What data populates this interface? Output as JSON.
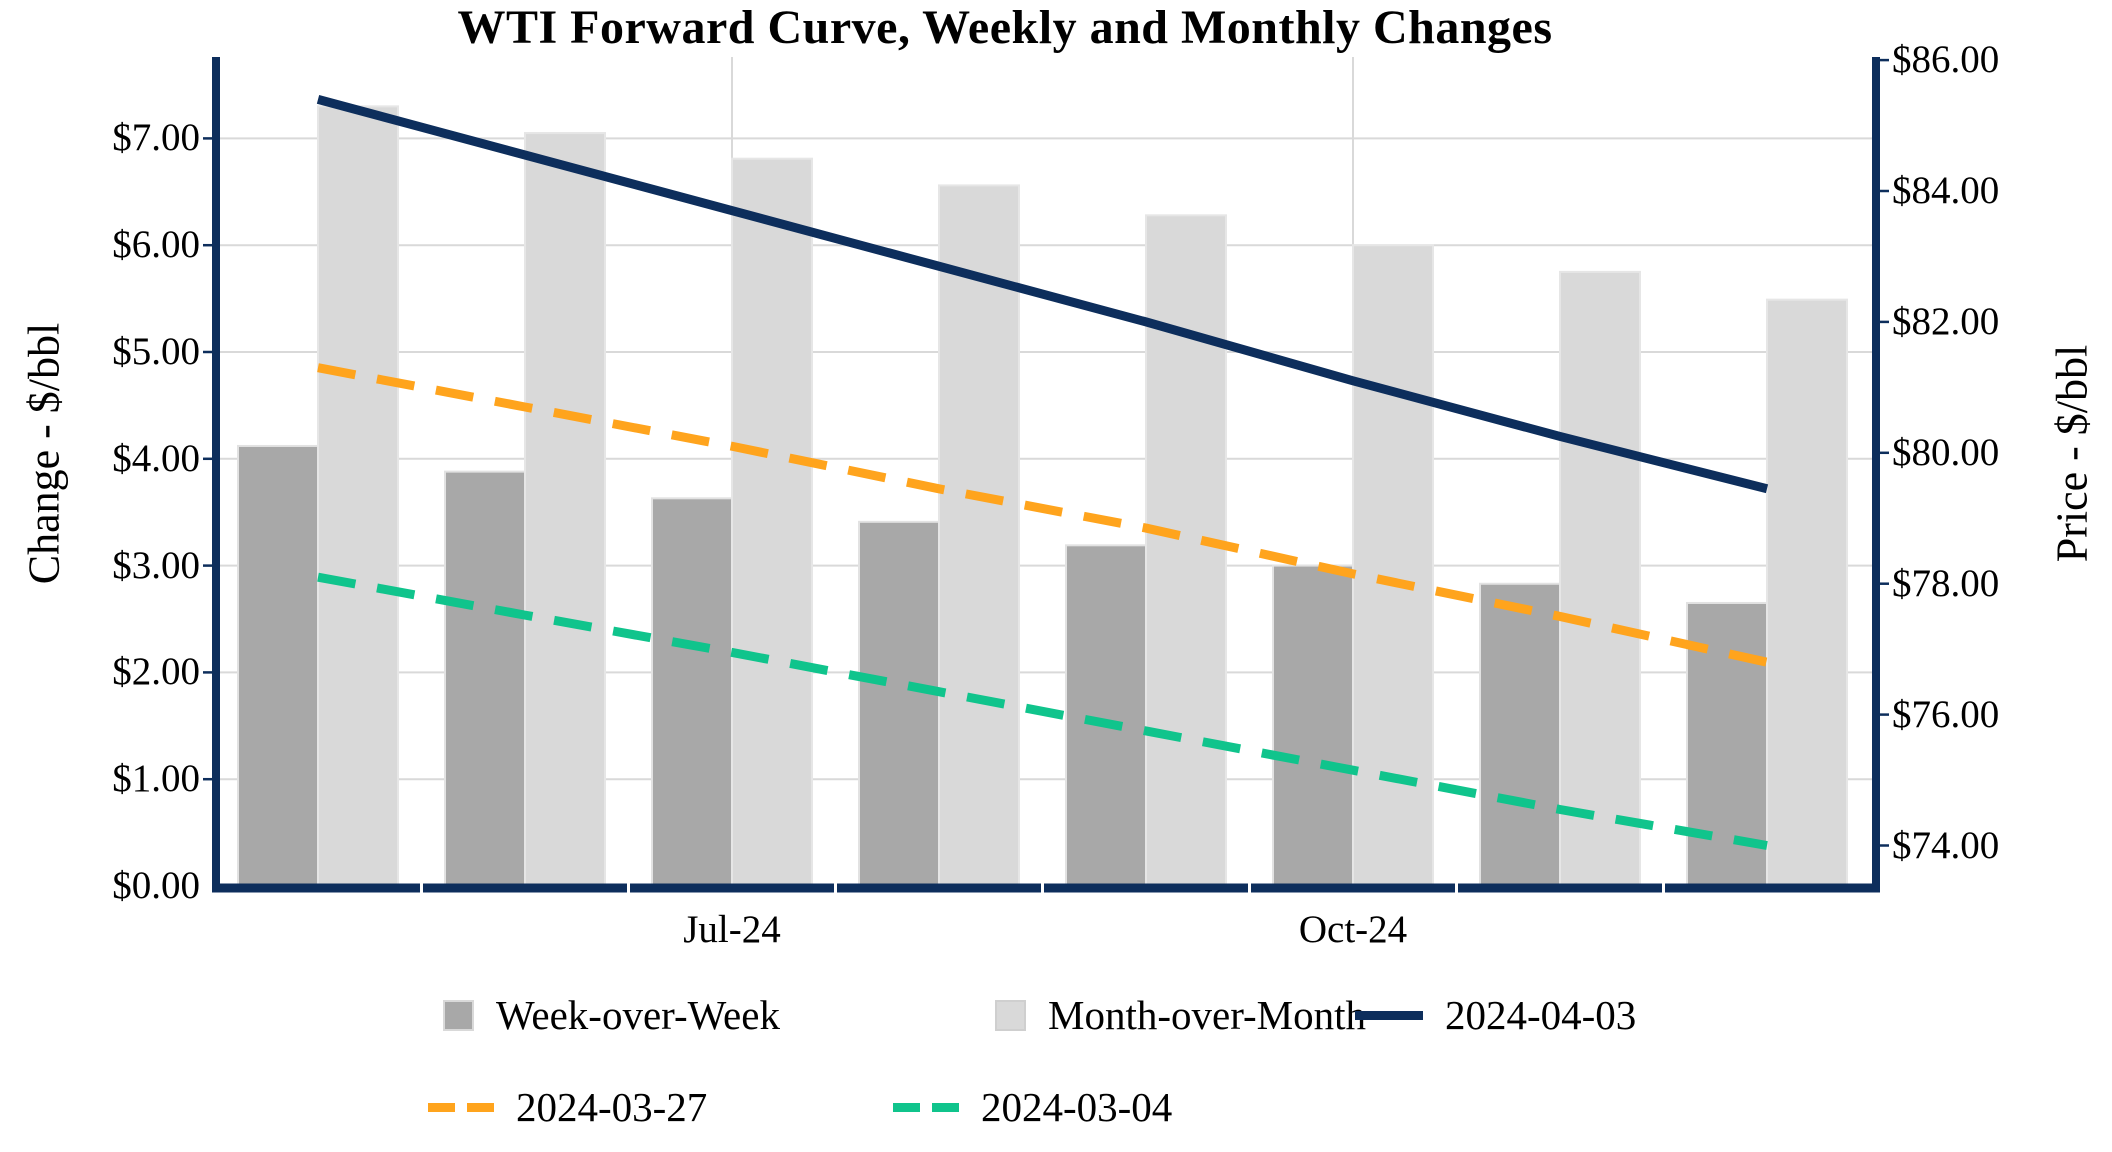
{
  "title": "WTI Forward Curve, Weekly and Monthly Changes",
  "left_axis": {
    "title": "Change - $/bbl",
    "ticks": [
      "$0.00",
      "$1.00",
      "$2.00",
      "$3.00",
      "$4.00",
      "$5.00",
      "$6.00",
      "$7.00"
    ]
  },
  "right_axis": {
    "title": "Price - $/bbl",
    "ticks": [
      "$74.00",
      "$76.00",
      "$78.00",
      "$80.00",
      "$82.00",
      "$84.00",
      "$86.00"
    ]
  },
  "x_axis": {
    "ticks": [
      {
        "label": "Jul-24",
        "group_index": 2
      },
      {
        "label": "Oct-24",
        "group_index": 5
      }
    ]
  },
  "legend": {
    "items": [
      {
        "label": "Week-over-Week",
        "marker": "square",
        "color_key": "bar_dark"
      },
      {
        "label": "Month-over-Month",
        "marker": "square",
        "color_key": "bar_light"
      },
      {
        "label": "2024-04-03",
        "marker": "line",
        "color_key": "navy"
      },
      {
        "label": "2024-03-27",
        "marker": "dash",
        "color_key": "orange"
      },
      {
        "label": "2024-03-04",
        "marker": "dash",
        "color_key": "green"
      }
    ]
  },
  "colors": {
    "navy": "#0d2e5c",
    "orange": "#ffa41d",
    "green": "#10c48c",
    "bar_dark": "#a8a8a8",
    "bar_light": "#d9d9d9",
    "gridline": "#d9d9d9",
    "axis": "#0d2e5c",
    "background": "#ffffff",
    "text": "#000000"
  },
  "chart_data": {
    "type": "bar+line combo, dual axis",
    "n_groups": 8,
    "categories": [
      "",
      "",
      "Jul-24",
      "",
      "",
      "Oct-24",
      "",
      ""
    ],
    "bar_series": [
      {
        "name": "Week-over-Week",
        "axis": "left",
        "color_key": "bar_dark",
        "values": [
          4.12,
          3.88,
          3.63,
          3.41,
          3.19,
          3.0,
          2.83,
          2.65
        ]
      },
      {
        "name": "Month-over-Month",
        "axis": "left",
        "color_key": "bar_light",
        "values": [
          7.3,
          7.05,
          6.81,
          6.56,
          6.28,
          6.0,
          5.75,
          5.49
        ]
      }
    ],
    "line_series": [
      {
        "name": "2024-03-27",
        "axis": "right",
        "style": "dashed",
        "color_key": "orange",
        "values": [
          81.3,
          80.7,
          80.1,
          79.45,
          78.85,
          78.15,
          77.5,
          76.8
        ]
      },
      {
        "name": "2024-03-04",
        "axis": "right",
        "style": "dashed",
        "color_key": "green",
        "values": [
          78.1,
          77.52,
          76.95,
          76.35,
          75.75,
          75.15,
          74.55,
          74.0
        ]
      },
      {
        "name": "2024-04-03",
        "axis": "right",
        "style": "solid",
        "color_key": "navy",
        "values": [
          85.4,
          84.55,
          83.7,
          82.85,
          82.0,
          81.1,
          80.25,
          79.45
        ]
      }
    ],
    "title": "WTI Forward Curve, Weekly and Monthly Changes",
    "left_ylabel": "Change - $/bbl",
    "right_ylabel": "Price - $/bbl",
    "left_ylim": [
      0,
      7.75
    ],
    "right_ylim": [
      73.35,
      86.05
    ],
    "grid": true,
    "legend_position": "bottom"
  }
}
